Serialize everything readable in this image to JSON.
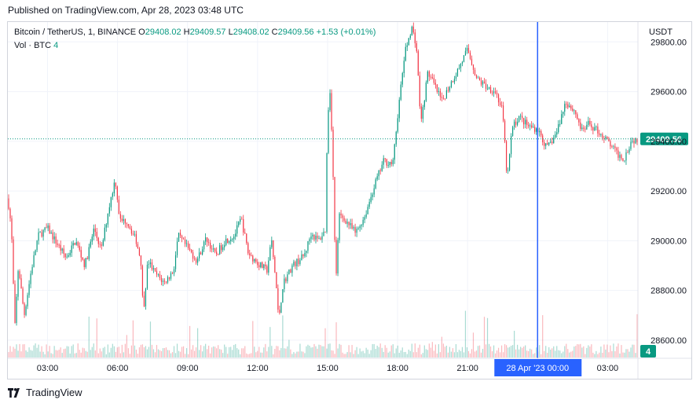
{
  "published": "Published on TradingView.com, Apr 28, 2023 03:48 UTC",
  "legend": {
    "symbol": "Bitcoin / TetherUS, 1, BINANCE",
    "o_label": "O",
    "o_value": "29408.02",
    "h_label": "H",
    "h_value": "29409.57",
    "l_label": "L",
    "l_value": "29408.02",
    "c_label": "C",
    "c_value": "29409.56",
    "change": "+1.53 (+0.01%)",
    "volume_label": "Vol · BTC",
    "volume_value": "4"
  },
  "currency": "USDT",
  "footer_brand": "TradingView",
  "colors": {
    "up": "#089981",
    "down": "#f23645",
    "crosshair": "#2962ff",
    "price_badge": "#089981",
    "time_badge": "#2962ff"
  },
  "chart_data": {
    "type": "candlestick",
    "symbol": "Bitcoin / TetherUS",
    "interval_minutes": 1,
    "y_ticks": [
      "29800.00",
      "29600.00",
      "29400.00",
      "29200.00",
      "29000.00",
      "28800.00",
      "28600.00"
    ],
    "ylim": [
      28530,
      29880
    ],
    "x_ticks": [
      "03:00",
      "06:00",
      "09:00",
      "12:00",
      "15:00",
      "18:00",
      "21:00",
      "03:00"
    ],
    "x_tick_hours": [
      3,
      6,
      9,
      12,
      15,
      18,
      21,
      27
    ],
    "x_range_hours": [
      1.3,
      28.3
    ],
    "last_price": "29409.56",
    "last_volume": "4",
    "crosshair_label": "28 Apr '23   00:00",
    "crosshair_hour": 24,
    "price_path": [
      [
        1.3,
        29170
      ],
      [
        1.45,
        29050
      ],
      [
        1.6,
        28650
      ],
      [
        1.75,
        28900
      ],
      [
        2.0,
        28700
      ],
      [
        2.3,
        28880
      ],
      [
        2.6,
        29020
      ],
      [
        3.0,
        29050
      ],
      [
        3.4,
        28990
      ],
      [
        3.8,
        28930
      ],
      [
        4.2,
        29000
      ],
      [
        4.6,
        28900
      ],
      [
        5.0,
        29050
      ],
      [
        5.3,
        28960
      ],
      [
        5.6,
        29120
      ],
      [
        5.9,
        29250
      ],
      [
        6.1,
        29080
      ],
      [
        6.4,
        29080
      ],
      [
        6.8,
        29000
      ],
      [
        7.0,
        28920
      ],
      [
        7.1,
        28710
      ],
      [
        7.3,
        28920
      ],
      [
        7.6,
        28870
      ],
      [
        8.0,
        28830
      ],
      [
        8.4,
        28880
      ],
      [
        8.6,
        29020
      ],
      [
        9.0,
        28970
      ],
      [
        9.4,
        28920
      ],
      [
        9.8,
        29010
      ],
      [
        10.2,
        28940
      ],
      [
        10.6,
        29000
      ],
      [
        11.0,
        29020
      ],
      [
        11.3,
        29090
      ],
      [
        11.6,
        28950
      ],
      [
        12.0,
        28910
      ],
      [
        12.4,
        28880
      ],
      [
        12.6,
        29000
      ],
      [
        12.8,
        28820
      ],
      [
        12.9,
        28680
      ],
      [
        13.1,
        28830
      ],
      [
        13.5,
        28900
      ],
      [
        14.0,
        28940
      ],
      [
        14.3,
        29030
      ],
      [
        14.6,
        29000
      ],
      [
        14.9,
        29040
      ],
      [
        15.0,
        29490
      ],
      [
        15.1,
        29610
      ],
      [
        15.2,
        29400
      ],
      [
        15.35,
        28830
      ],
      [
        15.5,
        29100
      ],
      [
        15.8,
        29080
      ],
      [
        16.2,
        29030
      ],
      [
        16.6,
        29100
      ],
      [
        17.0,
        29220
      ],
      [
        17.4,
        29320
      ],
      [
        17.8,
        29310
      ],
      [
        18.0,
        29500
      ],
      [
        18.3,
        29750
      ],
      [
        18.6,
        29860
      ],
      [
        18.8,
        29790
      ],
      [
        19.0,
        29470
      ],
      [
        19.3,
        29680
      ],
      [
        19.6,
        29620
      ],
      [
        19.9,
        29560
      ],
      [
        20.2,
        29620
      ],
      [
        20.6,
        29690
      ],
      [
        21.0,
        29770
      ],
      [
        21.4,
        29650
      ],
      [
        21.8,
        29620
      ],
      [
        22.2,
        29600
      ],
      [
        22.5,
        29520
      ],
      [
        22.7,
        29240
      ],
      [
        22.9,
        29450
      ],
      [
        23.2,
        29500
      ],
      [
        23.6,
        29460
      ],
      [
        24.0,
        29450
      ],
      [
        24.4,
        29370
      ],
      [
        24.8,
        29430
      ],
      [
        25.2,
        29560
      ],
      [
        25.6,
        29520
      ],
      [
        25.9,
        29440
      ],
      [
        26.2,
        29470
      ],
      [
        26.6,
        29440
      ],
      [
        27.0,
        29400
      ],
      [
        27.4,
        29350
      ],
      [
        27.7,
        29330
      ],
      [
        28.0,
        29400
      ],
      [
        28.3,
        29410
      ]
    ]
  }
}
